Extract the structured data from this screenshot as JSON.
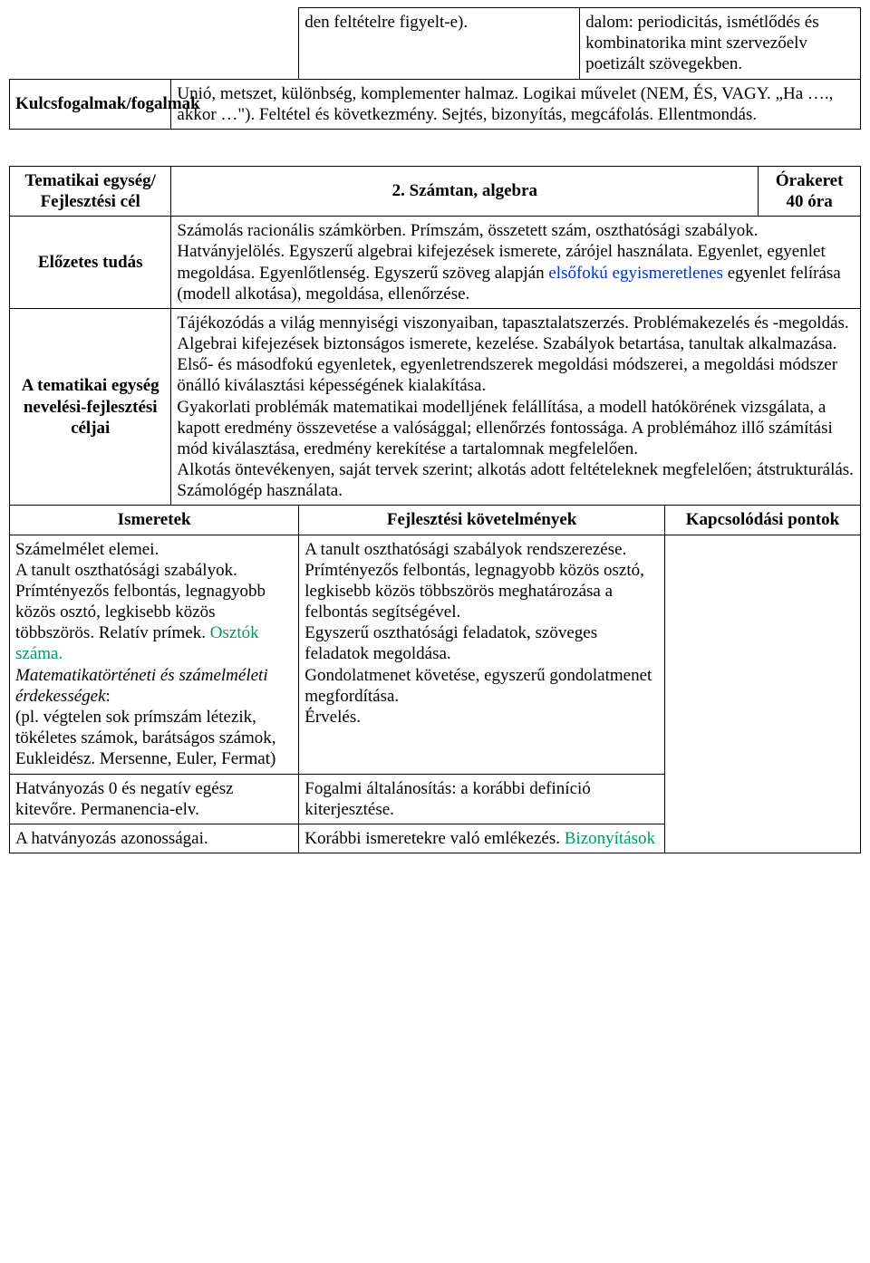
{
  "t1": {
    "r1c2": "den feltételre figyelt-e).",
    "r1c3": "dalom: periodicitás, ismétlődés és kombinatorika mint szervezőelv poetizált szövegekben.",
    "r2c1": "Kulcsfogalmak/fogalmak",
    "r2c2": "Unió, metszet, különbség, komplementer halmaz. Logikai művelet (NEM, ÉS, VAGY. „Ha …., akkor …\"). Feltétel és következmény. Sejtés, bizonyítás, megcáfolás. Ellentmondás."
  },
  "t2": {
    "r1c1": "Tematikai egység/ Fejlesztési cél",
    "r1c2": "2. Számtan, algebra",
    "r1c3a": "Órakeret",
    "r1c3b": "40 óra",
    "r2c1": "Előzetes tudás",
    "r2c2a": "Számolás racionális számkörben. Prímszám, összetett szám, oszthatósági szabályok. Hatványjelölés. Egyszerű algebrai kifejezések ismerete, zárójel használata. Egyenlet, egyenlet megoldása. Egyenlőtlenség. Egyszerű szöveg alapján ",
    "r2c2b": "elsőfokú egyismeretlenes",
    "r2c2c": " egyenlet felírása (modell alkotása), megoldása, ellenőrzése.",
    "r3c1": "A tematikai egység nevelési-fejlesztési céljai",
    "r3c2": "Tájékozódás a világ mennyiségi viszonyaiban, tapasztalatszerzés. Problémakezelés és -megoldás. Algebrai kifejezések biztonságos ismerete, kezelése. Szabályok betartása, tanultak alkalmazása. Első- és másodfokú egyenletek, egyenletrendszerek megoldási módszerei, a megoldási módszer önálló kiválasztási képességének kialakítása.\nGyakorlati problémák matematikai modelljének felállítása, a modell hatókörének vizsgálata, a kapott eredmény összevetése a valósággal; ellenőrzés fontossága. A problémához illő számítási mód kiválasztása, eredmény kerekítése a tartalomnak megfelelően.\nAlkotás öntevékenyen, saját tervek szerint; alkotás adott feltételeknek megfelelően; átstrukturálás. Számológép használata.",
    "h1": "Ismeretek",
    "h2": "Fejlesztési követelmények",
    "h3": "Kapcsolódási pontok",
    "d1c1a": "Számelmélet elemei.\nA tanult oszthatósági szabályok. Prímtényezős felbontás, legnagyobb közös osztó, legkisebb közös többszörös. Relatív prímek. ",
    "d1c1b": "Osztók száma.",
    "d1c1c": "Matematikatörténeti és számelméleti érdekességek",
    "d1c1d": ":\n(pl. végtelen sok prímszám létezik, tökéletes számok, barátságos számok,\nEukleidész. Mersenne, Euler, Fermat)",
    "d1c2": "A tanult oszthatósági szabályok rendszerezése. Prímtényezős felbontás, legnagyobb közös osztó, legkisebb közös többszörös meghatározása a felbontás segítségével.\nEgyszerű oszthatósági feladatok, szöveges feladatok megoldása.\nGondolatmenet követése, egyszerű gondolatmenet megfordítása.\nÉrvelés.",
    "d2c1": "Hatványozás 0 és negatív egész kitevőre. Permanencia-elv.",
    "d2c2": "Fogalmi általánosítás: a korábbi definíció kiterjesztése.",
    "d3c1": "A hatványozás azonosságai.",
    "d3c2a": "Korábbi ismeretekre való emlékezés. ",
    "d3c2b": "Bizonyítások"
  }
}
